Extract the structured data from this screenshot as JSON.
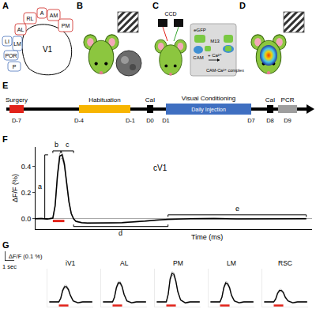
{
  "panel_labels": [
    "A",
    "B",
    "C",
    "D",
    "E",
    "F",
    "G"
  ],
  "A": {
    "areas": [
      {
        "text": "RL",
        "color": "#d9534f"
      },
      {
        "text": "A",
        "color": "#d9534f"
      },
      {
        "text": "AM",
        "color": "#d9534f"
      },
      {
        "text": "AL",
        "color": "#d9534f"
      },
      {
        "text": "PM",
        "color": "#d9534f"
      },
      {
        "text": "LI",
        "color": "#6f8fc9"
      },
      {
        "text": "LM",
        "color": "#6f8fc9"
      },
      {
        "text": "POR",
        "color": "#6f8fc9"
      },
      {
        "text": "P",
        "color": "#6f8fc9"
      },
      {
        "text": "V1",
        "color": "#000000"
      }
    ]
  },
  "C": {
    "camera": "CCD",
    "labels": {
      "egfp": "eGFP",
      "cam": "CAM",
      "m13": "M13",
      "ion": "+ Ca²⁺",
      "complex": "CAM-Ca²⁺ complex"
    }
  },
  "E": {
    "stages": [
      {
        "text": "Surgery",
        "color": "#e2231a"
      },
      {
        "text": "Habituation",
        "color": "#f7b500"
      },
      {
        "text": "CaI"
      },
      {
        "text": "Visual Conditioning",
        "sublabel": "Daily Injection",
        "color": "#3f6fc1"
      },
      {
        "text": "CaI"
      },
      {
        "text": "PCR",
        "color": "#9e9e9e"
      }
    ],
    "days": [
      "D-7",
      "D-4",
      "D-1",
      "D0",
      "D1",
      "D7",
      "D8",
      "D9"
    ]
  },
  "chart_data": [
    {
      "type": "line",
      "title": "cV1",
      "x_label": "Time (ms)",
      "y_label": "ΔF/F (%)",
      "x": [
        -1500,
        -1000,
        -500,
        0,
        200,
        400,
        600,
        800,
        1000,
        1200,
        1400,
        1600,
        1800,
        2000,
        2500,
        3000,
        4000,
        5000,
        6000,
        7000,
        8000,
        9000,
        10000,
        12000,
        14000,
        16000,
        18000,
        20000,
        22000
      ],
      "values": [
        0,
        0.002,
        -0.002,
        0.005,
        0.1,
        0.33,
        0.48,
        0.49,
        0.42,
        0.27,
        0.13,
        0.04,
        0,
        -0.02,
        -0.03,
        -0.033,
        -0.034,
        -0.032,
        -0.03,
        -0.025,
        -0.018,
        -0.01,
        -0.005,
        0,
        0.002,
        -0.001,
        0.001,
        0,
        0.001
      ],
      "sem": [
        0.003,
        0.003,
        0.003,
        0.004,
        0.01,
        0.02,
        0.025,
        0.025,
        0.02,
        0.015,
        0.01,
        0.006,
        0.004,
        0.004,
        0.003,
        0.003,
        0.003,
        0.003,
        0.003,
        0.003,
        0.003,
        0.003,
        0.003,
        0.003,
        0.003,
        0.003,
        0.003,
        0.003,
        0.003
      ],
      "color": "#000000",
      "xlim": [
        -1500,
        22500
      ],
      "ylim": [
        -0.08,
        0.55
      ],
      "yticks": [
        {
          "value": 0,
          "label": "0.0"
        },
        0.2,
        0.4
      ],
      "tick_labels": "y",
      "grid": false,
      "stimulus": {
        "start": 0,
        "end": 1000,
        "color": "#e2231a"
      },
      "annotations": [
        {
          "text": "a",
          "x": -700,
          "y": [
            0,
            0.49
          ]
        },
        {
          "text": "b",
          "x": [
            0,
            700
          ],
          "y": 0.52
        },
        {
          "text": "c",
          "x": [
            700,
            1800
          ],
          "y": 0.52
        },
        {
          "text": "d",
          "x": [
            1800,
            10000
          ],
          "y": -0.06
        },
        {
          "text": "e",
          "x": [
            10000,
            22000
          ],
          "y": 0.03
        }
      ]
    },
    {
      "type": "line",
      "x": [
        -1000,
        -500,
        0,
        200,
        400,
        600,
        800,
        1000,
        1200,
        1500,
        2000,
        2500,
        3000,
        3500
      ],
      "xlim": [
        -1200,
        3600
      ],
      "ylim": [
        -0.05,
        0.35
      ],
      "tick_labels": false,
      "grid": false,
      "stimulus": {
        "start": 0,
        "end": 1000,
        "color": "#e2231a"
      },
      "scale_bar": {
        "y_value": 0.1,
        "y_label": "ΔF/F (0.1 %)",
        "x_value": 1000,
        "x_label": "1 sec"
      },
      "series": [
        {
          "name": "iV1",
          "color": "#000000",
          "values": [
            0,
            0,
            0,
            0.04,
            0.12,
            0.16,
            0.16,
            0.13,
            0.07,
            0.01,
            -0.01,
            0,
            0,
            0
          ],
          "sem": [
            0.005,
            0.005,
            0.005,
            0.008,
            0.012,
            0.015,
            0.015,
            0.012,
            0.01,
            0.006,
            0.005,
            0.005,
            0.005,
            0.005
          ]
        },
        {
          "name": "AL",
          "color": "#000000",
          "values": [
            0,
            0,
            0,
            0.05,
            0.15,
            0.2,
            0.2,
            0.16,
            0.08,
            0.01,
            -0.01,
            0,
            0,
            0
          ],
          "sem": [
            0.005,
            0.005,
            0.005,
            0.008,
            0.012,
            0.015,
            0.015,
            0.012,
            0.01,
            0.006,
            0.005,
            0.005,
            0.005,
            0.005
          ]
        },
        {
          "name": "PM",
          "color": "#000000",
          "values": [
            0,
            0,
            0,
            0.08,
            0.24,
            0.3,
            0.29,
            0.22,
            0.11,
            0.02,
            -0.01,
            0,
            0,
            0
          ],
          "sem": [
            0.005,
            0.005,
            0.005,
            0.01,
            0.015,
            0.018,
            0.018,
            0.015,
            0.01,
            0.006,
            0.005,
            0.005,
            0.005,
            0.005
          ]
        },
        {
          "name": "LM",
          "color": "#000000",
          "values": [
            0,
            0,
            0,
            0.05,
            0.15,
            0.2,
            0.19,
            0.15,
            0.07,
            0.01,
            -0.01,
            0,
            0,
            0
          ],
          "sem": [
            0.005,
            0.005,
            0.005,
            0.008,
            0.012,
            0.015,
            0.015,
            0.012,
            0.01,
            0.006,
            0.005,
            0.005,
            0.005,
            0.005
          ]
        },
        {
          "name": "RSC",
          "color": "#000000",
          "values": [
            0,
            0,
            0,
            0.03,
            0.09,
            0.12,
            0.12,
            0.1,
            0.05,
            0.01,
            -0.01,
            0,
            0,
            0
          ],
          "sem": [
            0.005,
            0.005,
            0.005,
            0.007,
            0.01,
            0.012,
            0.012,
            0.01,
            0.008,
            0.006,
            0.005,
            0.005,
            0.005,
            0.005
          ]
        }
      ]
    }
  ]
}
